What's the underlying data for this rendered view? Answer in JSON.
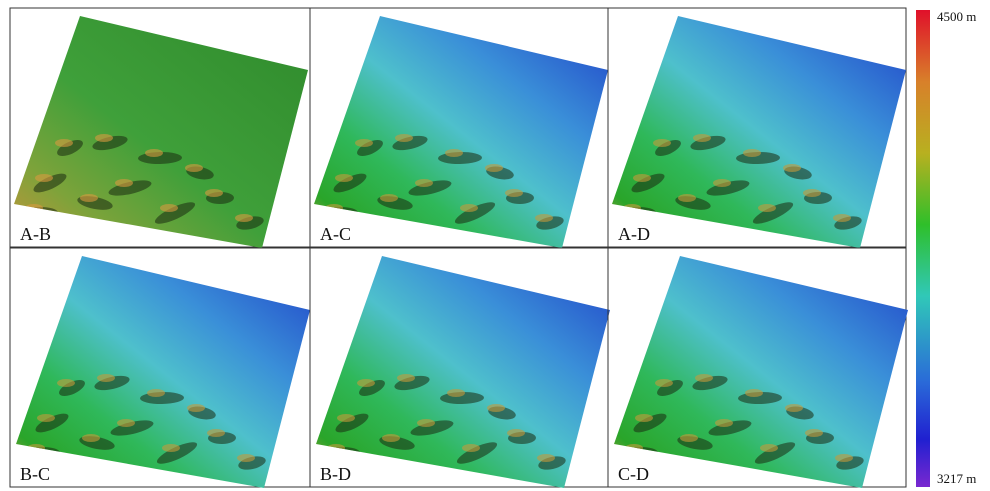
{
  "panels": [
    {
      "label": "A-B"
    },
    {
      "label": "A-C"
    },
    {
      "label": "A-D"
    },
    {
      "label": "B-C"
    },
    {
      "label": "B-D"
    },
    {
      "label": "C-D"
    }
  ],
  "colorbar": {
    "max_label": "4500 m",
    "min_label": "3217 m"
  }
}
